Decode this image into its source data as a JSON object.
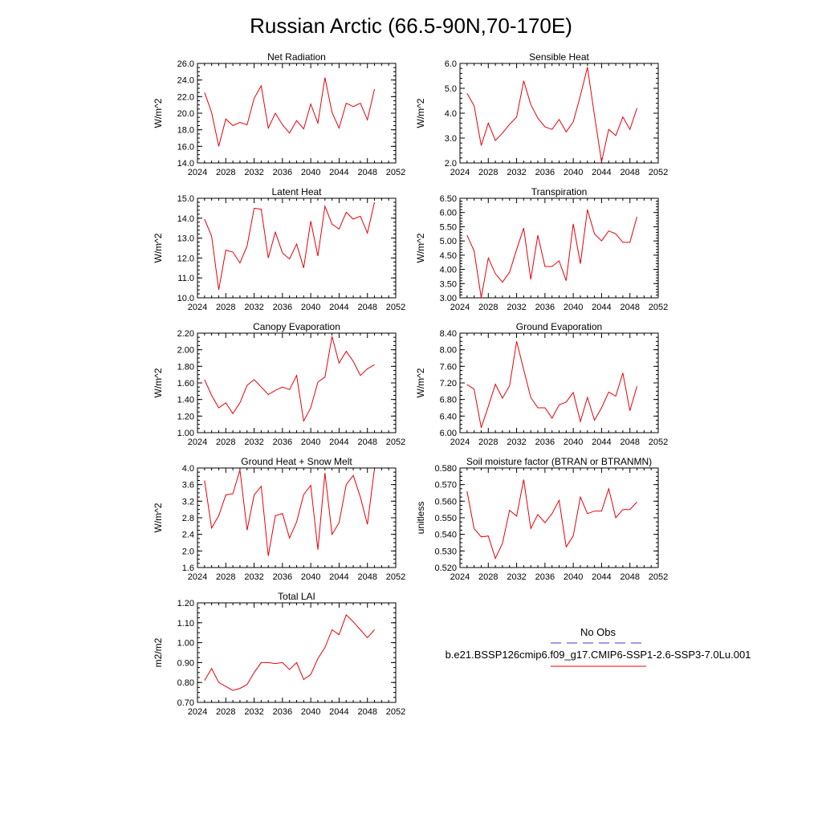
{
  "figure": {
    "title": "Russian Arctic (66.5-90N,70-170E)"
  },
  "legend": {
    "obs_label": "No Obs",
    "obs_color": "#3d3dd9",
    "model_label": "b.e21.BSSP126cmip6.f09_g17.CMIP6-SSP1-2.6-SSP3-7.0Lu.001",
    "model_color": "#e8000b"
  },
  "chart_data": [
    {
      "type": "line",
      "title": "Net Radiation",
      "ylabel": "W/m^2",
      "xlim": [
        2024,
        2052
      ],
      "xticks": [
        2024,
        2028,
        2032,
        2036,
        2040,
        2044,
        2048,
        2052
      ],
      "ylim": [
        14.0,
        26.0
      ],
      "yticks": [
        "14.0",
        "16.0",
        "18.0",
        "20.0",
        "22.0",
        "24.0",
        "26.0"
      ],
      "yminor_step": 0.5,
      "series": [
        {
          "x": [
            2025,
            2026,
            2027,
            2028,
            2029,
            2030,
            2031,
            2032,
            2033,
            2034,
            2035,
            2036,
            2037,
            2038,
            2039,
            2040,
            2041,
            2042,
            2043,
            2044,
            2045,
            2046,
            2047,
            2048,
            2049
          ],
          "y": [
            22.5,
            20.1,
            16.0,
            19.3,
            18.5,
            18.9,
            18.6,
            21.8,
            23.3,
            18.2,
            20.0,
            18.6,
            17.6,
            19.1,
            18.1,
            21.1,
            18.8,
            24.3,
            20.1,
            18.2,
            21.2,
            20.8,
            21.2,
            19.2,
            22.9
          ]
        }
      ]
    },
    {
      "type": "line",
      "title": "Sensible Heat",
      "ylabel": "W/m^2",
      "xlim": [
        2024,
        2052
      ],
      "xticks": [
        2024,
        2028,
        2032,
        2036,
        2040,
        2044,
        2048,
        2052
      ],
      "ylim": [
        2.0,
        6.0
      ],
      "yticks": [
        "2.0",
        "3.0",
        "4.0",
        "5.0",
        "6.0"
      ],
      "yminor_step": 0.2,
      "series": [
        {
          "x": [
            2025,
            2026,
            2027,
            2028,
            2029,
            2030,
            2031,
            2032,
            2033,
            2034,
            2035,
            2036,
            2037,
            2038,
            2039,
            2040,
            2041,
            2042,
            2043,
            2044,
            2045,
            2046,
            2047,
            2048,
            2049
          ],
          "y": [
            4.8,
            4.3,
            2.7,
            3.6,
            2.9,
            3.2,
            3.55,
            3.85,
            5.3,
            4.35,
            3.8,
            3.45,
            3.35,
            3.75,
            3.25,
            3.65,
            4.7,
            5.85,
            3.9,
            2.05,
            3.35,
            3.1,
            3.85,
            3.35,
            4.2
          ]
        }
      ]
    },
    {
      "type": "line",
      "title": "Latent Heat",
      "ylabel": "W/m^2",
      "xlim": [
        2024,
        2052
      ],
      "xticks": [
        2024,
        2028,
        2032,
        2036,
        2040,
        2044,
        2048,
        2052
      ],
      "ylim": [
        10.0,
        15.0
      ],
      "yticks": [
        "10.0",
        "11.0",
        "12.0",
        "13.0",
        "14.0",
        "15.0"
      ],
      "yminor_step": 0.2,
      "series": [
        {
          "x": [
            2025,
            2026,
            2027,
            2028,
            2029,
            2030,
            2031,
            2032,
            2033,
            2034,
            2035,
            2036,
            2037,
            2038,
            2039,
            2040,
            2041,
            2042,
            2043,
            2044,
            2045,
            2046,
            2047,
            2048,
            2049
          ],
          "y": [
            13.95,
            13.1,
            10.4,
            12.4,
            12.3,
            11.75,
            12.6,
            14.5,
            14.45,
            12.0,
            13.3,
            12.25,
            11.95,
            12.7,
            11.5,
            13.85,
            12.1,
            14.6,
            13.7,
            13.45,
            14.3,
            13.95,
            14.1,
            13.25,
            14.8
          ]
        }
      ]
    },
    {
      "type": "line",
      "title": "Transpiration",
      "ylabel": "W/m^2",
      "xlim": [
        2024,
        2052
      ],
      "xticks": [
        2024,
        2028,
        2032,
        2036,
        2040,
        2044,
        2048,
        2052
      ],
      "ylim": [
        3.0,
        6.5
      ],
      "yticks": [
        "3.00",
        "3.50",
        "4.00",
        "4.50",
        "5.00",
        "5.50",
        "6.00",
        "6.50"
      ],
      "yminor_step": 0.1,
      "series": [
        {
          "x": [
            2025,
            2026,
            2027,
            2028,
            2029,
            2030,
            2031,
            2032,
            2033,
            2034,
            2035,
            2036,
            2037,
            2038,
            2039,
            2040,
            2041,
            2042,
            2043,
            2044,
            2045,
            2046,
            2047,
            2048,
            2049
          ],
          "y": [
            5.2,
            4.65,
            3.0,
            4.4,
            3.85,
            3.55,
            3.9,
            4.7,
            5.45,
            3.65,
            5.2,
            4.1,
            4.1,
            4.3,
            3.6,
            5.6,
            4.2,
            6.1,
            5.25,
            5.0,
            5.35,
            5.25,
            4.95,
            4.95,
            5.85
          ]
        }
      ]
    },
    {
      "type": "line",
      "title": "Canopy Evaporation",
      "ylabel": "W/m^2",
      "xlim": [
        2024,
        2052
      ],
      "xticks": [
        2024,
        2028,
        2032,
        2036,
        2040,
        2044,
        2048,
        2052
      ],
      "ylim": [
        1.0,
        2.2
      ],
      "yticks": [
        "1.00",
        "1.20",
        "1.40",
        "1.60",
        "1.80",
        "2.00",
        "2.20"
      ],
      "yminor_step": 0.05,
      "series": [
        {
          "x": [
            2025,
            2026,
            2027,
            2028,
            2029,
            2030,
            2031,
            2032,
            2033,
            2034,
            2035,
            2036,
            2037,
            2038,
            2039,
            2040,
            2041,
            2042,
            2043,
            2044,
            2045,
            2046,
            2047,
            2048,
            2049
          ],
          "y": [
            1.64,
            1.45,
            1.3,
            1.36,
            1.23,
            1.36,
            1.57,
            1.64,
            1.55,
            1.46,
            1.51,
            1.55,
            1.52,
            1.69,
            1.14,
            1.3,
            1.61,
            1.67,
            2.16,
            1.84,
            1.98,
            1.86,
            1.69,
            1.77,
            1.82
          ]
        }
      ]
    },
    {
      "type": "line",
      "title": "Ground Evaporation",
      "ylabel": "W/m^2",
      "xlim": [
        2024,
        2052
      ],
      "xticks": [
        2024,
        2028,
        2032,
        2036,
        2040,
        2044,
        2048,
        2052
      ],
      "ylim": [
        6.0,
        8.4
      ],
      "yticks": [
        "6.00",
        "6.40",
        "6.80",
        "7.20",
        "7.60",
        "8.00",
        "8.40"
      ],
      "yminor_step": 0.1,
      "series": [
        {
          "x": [
            2025,
            2026,
            2027,
            2028,
            2029,
            2030,
            2031,
            2032,
            2033,
            2034,
            2035,
            2036,
            2037,
            2038,
            2039,
            2040,
            2041,
            2042,
            2043,
            2044,
            2045,
            2046,
            2047,
            2048,
            2049
          ],
          "y": [
            7.16,
            7.05,
            6.12,
            6.63,
            7.17,
            6.83,
            7.13,
            8.2,
            7.52,
            6.85,
            6.6,
            6.6,
            6.35,
            6.67,
            6.74,
            6.97,
            6.27,
            6.85,
            6.3,
            6.6,
            6.98,
            6.88,
            7.44,
            6.53,
            7.12
          ]
        }
      ]
    },
    {
      "type": "line",
      "title": "Ground Heat + Snow Melt",
      "ylabel": "W/m^2",
      "xlim": [
        2024,
        2052
      ],
      "xticks": [
        2024,
        2028,
        2032,
        2036,
        2040,
        2044,
        2048,
        2052
      ],
      "ylim": [
        1.6,
        4.0
      ],
      "yticks": [
        "1.6",
        "2.0",
        "2.4",
        "2.8",
        "3.2",
        "3.6",
        "4.0"
      ],
      "yminor_step": 0.1,
      "series": [
        {
          "x": [
            2025,
            2026,
            2027,
            2028,
            2029,
            2030,
            2031,
            2032,
            2033,
            2034,
            2035,
            2036,
            2037,
            2038,
            2039,
            2040,
            2041,
            2042,
            2043,
            2044,
            2045,
            2046,
            2047,
            2048,
            2049
          ],
          "y": [
            3.7,
            2.55,
            2.85,
            3.35,
            3.38,
            3.95,
            2.5,
            3.35,
            3.56,
            1.88,
            2.85,
            2.9,
            2.31,
            2.7,
            3.36,
            3.58,
            2.03,
            3.88,
            2.4,
            2.68,
            3.6,
            3.82,
            3.3,
            2.64,
            3.98
          ]
        }
      ]
    },
    {
      "type": "line",
      "title": "Soil moisture factor (BTRAN or BTRANMN)",
      "ylabel": "unitless",
      "xlim": [
        2024,
        2052
      ],
      "xticks": [
        2024,
        2028,
        2032,
        2036,
        2040,
        2044,
        2048,
        2052
      ],
      "ylim": [
        0.52,
        0.58
      ],
      "yticks": [
        "0.520",
        "0.530",
        "0.540",
        "0.550",
        "0.560",
        "0.570",
        "0.580"
      ],
      "yminor_step": 0.0025,
      "series": [
        {
          "x": [
            2025,
            2026,
            2027,
            2028,
            2029,
            2030,
            2031,
            2032,
            2033,
            2034,
            2035,
            2036,
            2037,
            2038,
            2039,
            2040,
            2041,
            2042,
            2043,
            2044,
            2045,
            2046,
            2047,
            2048,
            2049
          ],
          "y": [
            0.566,
            0.5435,
            0.5385,
            0.539,
            0.5255,
            0.5345,
            0.5545,
            0.551,
            0.573,
            0.5435,
            0.552,
            0.547,
            0.5525,
            0.5605,
            0.5325,
            0.539,
            0.5625,
            0.5525,
            0.554,
            0.554,
            0.5675,
            0.55,
            0.555,
            0.555,
            0.5595
          ]
        }
      ]
    },
    {
      "type": "line",
      "title": "Total LAI",
      "ylabel": "m2/m2",
      "xlim": [
        2024,
        2052
      ],
      "xticks": [
        2024,
        2028,
        2032,
        2036,
        2040,
        2044,
        2048,
        2052
      ],
      "ylim": [
        0.7,
        1.2
      ],
      "yticks": [
        "0.70",
        "0.80",
        "0.90",
        "1.00",
        "1.10",
        "1.20"
      ],
      "yminor_step": 0.025,
      "series": [
        {
          "x": [
            2025,
            2026,
            2027,
            2028,
            2029,
            2030,
            2031,
            2032,
            2033,
            2034,
            2035,
            2036,
            2037,
            2038,
            2039,
            2040,
            2041,
            2042,
            2043,
            2044,
            2045,
            2046,
            2047,
            2048,
            2049
          ],
          "y": [
            0.81,
            0.87,
            0.8,
            0.78,
            0.76,
            0.77,
            0.79,
            0.85,
            0.9,
            0.9,
            0.895,
            0.9,
            0.865,
            0.9,
            0.815,
            0.84,
            0.92,
            0.975,
            1.065,
            1.04,
            1.14,
            1.105,
            1.065,
            1.025,
            1.065
          ]
        }
      ]
    }
  ]
}
